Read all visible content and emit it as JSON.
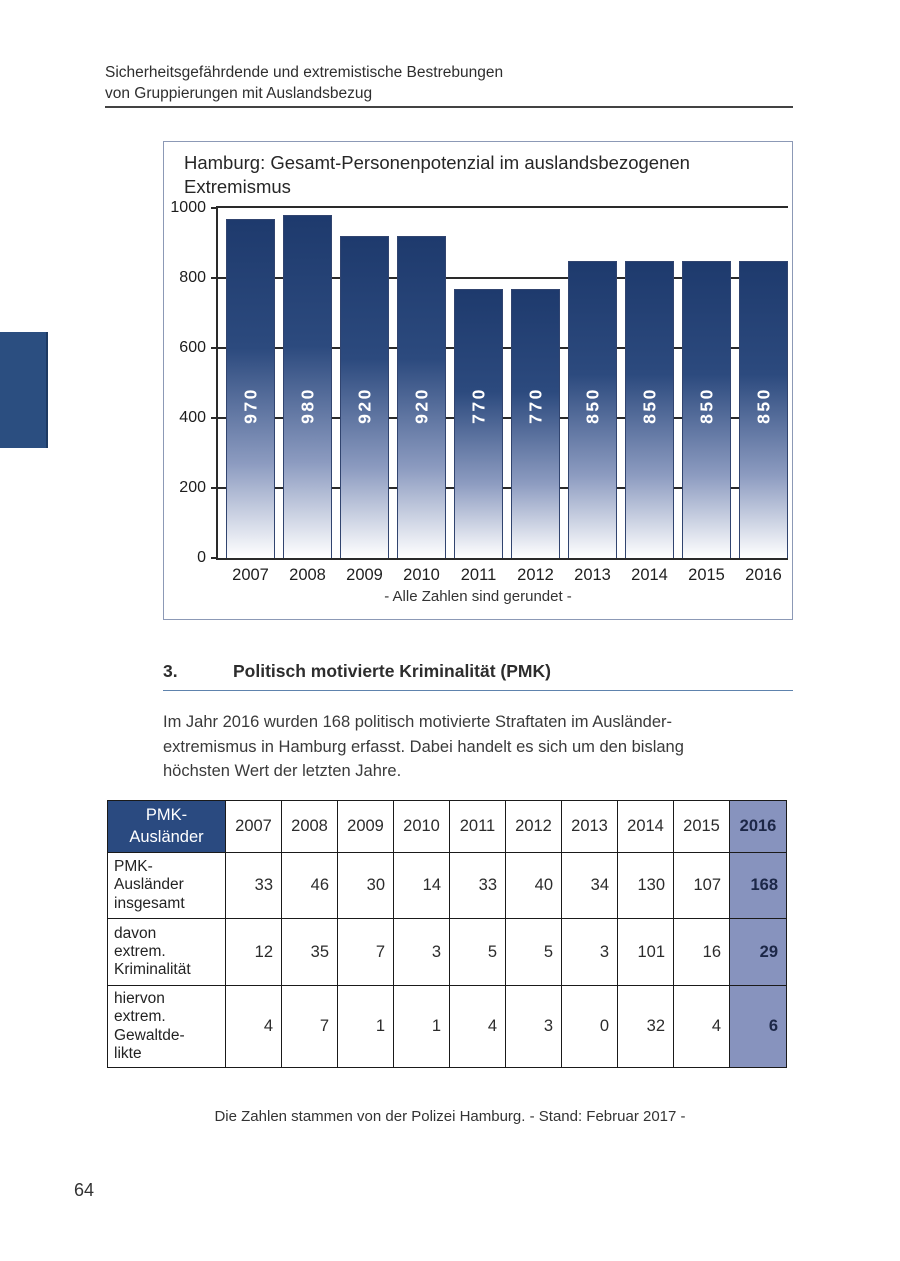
{
  "header": {
    "line1": "Sicherheitsgefährdende und extremistische Bestrebungen",
    "line2": "von Gruppierungen mit Auslandsbezug"
  },
  "chart": {
    "title": "Hamburg: Gesamt-Personenpotenzial im auslandsbezogenen Extremismus",
    "note": "- Alle Zahlen sind gerundet -"
  },
  "chart_data": {
    "type": "bar",
    "title": "Hamburg: Gesamt-Personenpotenzial im auslandsbezogenen Extremismus",
    "categories": [
      "2007",
      "2008",
      "2009",
      "2010",
      "2011",
      "2012",
      "2013",
      "2014",
      "2015",
      "2016"
    ],
    "values": [
      970,
      980,
      920,
      920,
      770,
      770,
      850,
      850,
      850,
      850
    ],
    "bar_labels": [
      "970",
      "980",
      "920",
      "920",
      "770",
      "770",
      "850",
      "850",
      "850",
      "850"
    ],
    "ylim": [
      0,
      1000
    ],
    "yticks": [
      0,
      200,
      400,
      600,
      800,
      1000
    ],
    "grid": true,
    "legend": false,
    "note": "- Alle Zahlen sind gerundet -",
    "bar_color_top": "#1E3A6D",
    "bar_color_bottom": "#FFFFFF"
  },
  "section": {
    "number": "3.",
    "title": "Politisch motivierte Kriminalität (PMK)",
    "paragraph": "Im Jahr 2016 wurden 168 politisch motivierte Straftaten im Ausländer-\nextremismus in Hamburg erfasst. Dabei handelt es sich um den bislang\nhöchsten Wert der letzten Jahre."
  },
  "table": {
    "corner_label": "PMK-\nAusländer",
    "year_headers": [
      "2007",
      "2008",
      "2009",
      "2010",
      "2011",
      "2012",
      "2013",
      "2014",
      "2015",
      "2016"
    ],
    "rows": [
      {
        "label": "PMK-\nAusländer\ninsgesamt",
        "values": [
          "33",
          "46",
          "30",
          "14",
          "33",
          "40",
          "34",
          "130",
          "107",
          "168"
        ]
      },
      {
        "label": "davon\nextrem.\nKriminalität",
        "values": [
          "12",
          "35",
          "7",
          "3",
          "5",
          "5",
          "3",
          "101",
          "16",
          "29"
        ]
      },
      {
        "label": "hiervon\nextrem.\nGewaltde-\nlikte",
        "values": [
          "4",
          "7",
          "1",
          "1",
          "4",
          "3",
          "0",
          "32",
          "4",
          "6"
        ]
      }
    ],
    "highlight_column": "2016"
  },
  "footer": {
    "source_note": "Die Zahlen stammen von der Polizei Hamburg. - Stand: Februar 2017 -",
    "page_number": "64"
  },
  "colors": {
    "navy_header": "#2A4A80",
    "highlight_periwinkle": "#8793BE",
    "side_tab_blue": "#2B4E80",
    "section_rule_blue": "#5E83AD",
    "chart_border": "#8C99B6"
  }
}
